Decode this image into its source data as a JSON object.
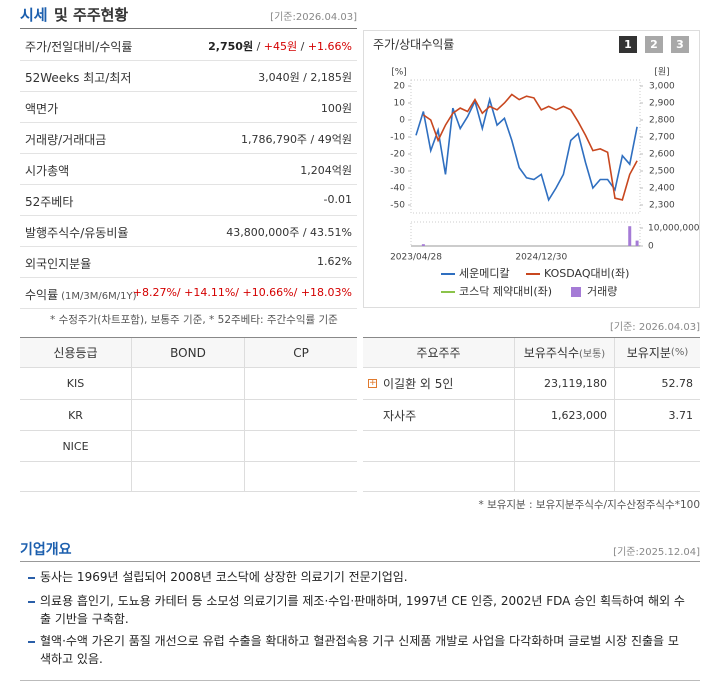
{
  "header": {
    "title": "시세",
    "title_rest": "및 주주현황",
    "date": "[기준:2026.04.03]"
  },
  "quote": {
    "rows": [
      {
        "label": "주가/전일대비/수익률",
        "value": [
          {
            "text": "2,750원",
            "tone": "bold"
          },
          {
            "text": " / "
          },
          {
            "text": "+45원",
            "tone": "up"
          },
          {
            "text": " / "
          },
          {
            "text": "+1.66%",
            "tone": "up"
          }
        ]
      },
      {
        "label": "52Weeks 최고/최저",
        "value": [
          {
            "text": "3,040원 / 2,185원"
          }
        ]
      },
      {
        "label": "액면가",
        "value": [
          {
            "text": "100원"
          }
        ]
      },
      {
        "label": "거래량/거래대금",
        "value": [
          {
            "text": "1,786,790주 / 49억원"
          }
        ]
      },
      {
        "label": "시가총액",
        "value": [
          {
            "text": "1,204억원"
          }
        ]
      },
      {
        "label": "52주베타",
        "value": [
          {
            "text": "-0.01"
          }
        ]
      },
      {
        "label": "발행주식수/유동비율",
        "value": [
          {
            "text": "43,800,000주 / 43.51%"
          }
        ]
      },
      {
        "label": "외국인지분율",
        "value": [
          {
            "text": "1.62%"
          }
        ]
      },
      {
        "label": "수익률",
        "label_note": "(1M/3M/6M/1Y)",
        "value": [
          {
            "text": "+8.27%/ +14.11%/ +10.66%/ +18.03%",
            "tone": "up"
          }
        ]
      }
    ],
    "note": "* 수정주가(차트포함), 보통주 기준, * 52주베타: 주간수익률 기준"
  },
  "chart_data": {
    "type": "line",
    "title": "주가/상대수익률",
    "buttons": [
      "1",
      "2",
      "3"
    ],
    "y_unit": "[%]",
    "y2_unit": "[원]",
    "categories": [
      "2023/04/28",
      null,
      null,
      null,
      null,
      null,
      null,
      null,
      null,
      null,
      null,
      null,
      null,
      null,
      null,
      null,
      null,
      "2024/12/30",
      null,
      null,
      null,
      null,
      null,
      null,
      null,
      null,
      null,
      null,
      null,
      null,
      null
    ],
    "ylim": [
      -55,
      25
    ],
    "yticks": [
      20,
      10,
      0,
      -10,
      -20,
      -30,
      -40,
      -50
    ],
    "y2lim": [
      2250,
      3050
    ],
    "y2ticks": [
      {
        "value": 3000,
        "label": "3,000"
      },
      {
        "value": 2900,
        "label": "2,900"
      },
      {
        "value": 2800,
        "label": "2,800"
      },
      {
        "value": 2700,
        "label": "2,700"
      },
      {
        "value": 2600,
        "label": "2,600"
      },
      {
        "value": 2500,
        "label": "2,500"
      },
      {
        "value": 2400,
        "label": "2,400"
      },
      {
        "value": 2300,
        "label": "2,300"
      }
    ],
    "series": [
      {
        "name": "세운메디칼",
        "color": "#2f6fc0",
        "axis": "y2",
        "values": [
          2710,
          2850,
          2620,
          2740,
          2480,
          2870,
          2750,
          2820,
          2910,
          2750,
          2920,
          2770,
          2810,
          2680,
          2520,
          2460,
          2450,
          2480,
          2330,
          2400,
          2480,
          2680,
          2720,
          2550,
          2400,
          2450,
          2450,
          2390,
          2590,
          2540,
          2760
        ]
      },
      {
        "name": "KOSDAQ대비(좌)",
        "color": "#c8471f",
        "values": [
          null,
          3,
          0,
          -12,
          -3,
          4,
          7,
          5,
          12,
          4,
          8,
          6,
          10,
          15,
          12,
          14,
          13,
          6,
          8,
          6,
          8,
          6,
          -1,
          -9,
          -18,
          -17,
          -19,
          -46,
          -47,
          -32,
          -24
        ]
      },
      {
        "name": "코스닥 제약대비(좌)",
        "color": "#8bc34a",
        "values": [
          null,
          null,
          null,
          null,
          null,
          null,
          null,
          null,
          null,
          null,
          null,
          null,
          null,
          null,
          null,
          null,
          null,
          null,
          null,
          null,
          null,
          null,
          null,
          null,
          null,
          null,
          null,
          null,
          null,
          null,
          null
        ]
      }
    ],
    "volume": {
      "name": "거래량",
      "color": "#a57bd6",
      "lim": [
        0,
        14000000
      ],
      "ticks": [
        {
          "value": 10000000,
          "label": "10,000,000"
        },
        0
      ],
      "values": [
        null,
        1000000,
        null,
        null,
        null,
        null,
        null,
        null,
        null,
        null,
        null,
        null,
        null,
        null,
        null,
        null,
        null,
        null,
        null,
        null,
        null,
        null,
        null,
        null,
        null,
        null,
        null,
        null,
        null,
        11000000,
        3000000
      ]
    }
  },
  "credit": {
    "headers": [
      "신용등급",
      "BOND",
      "CP"
    ],
    "rows": [
      "KIS",
      "KR",
      "NICE"
    ]
  },
  "holders": {
    "date": "[기준: 2026.04.03]",
    "headers": [
      {
        "text": "주요주주"
      },
      {
        "text": "보유주식수",
        "note": "(보통)"
      },
      {
        "text": "보유지분",
        "note": "(%)"
      }
    ],
    "rows": [
      [
        "이길환 외 5인",
        "23,119,180",
        "52.78"
      ],
      [
        "자사주",
        "1,623,000",
        "3.71"
      ]
    ],
    "note": "* 보유지분 : 보유지분주식수/지수산정주식수*100"
  },
  "overview": {
    "title": "기업개요",
    "date": "[기준:2025.12.04]",
    "items": [
      "동사는 1969년 설립되어 2008년 코스닥에 상장한 의료기기 전문기업임.",
      "의료용 흡인기, 도뇨용 카테터 등 소모성 의료기기를 제조·수입·판매하며, 1997년 CE 인증, 2002년 FDA 승인 획득하여 해외 수출 기반을 구축함.",
      "혈액·수액 가온기 품질 개선으로 유럽 수출을 확대하고 혈관접속용 기구 신제품 개발로 사업을 다각화하며 글로벌 시장 진출을 모색하고 있음."
    ]
  }
}
